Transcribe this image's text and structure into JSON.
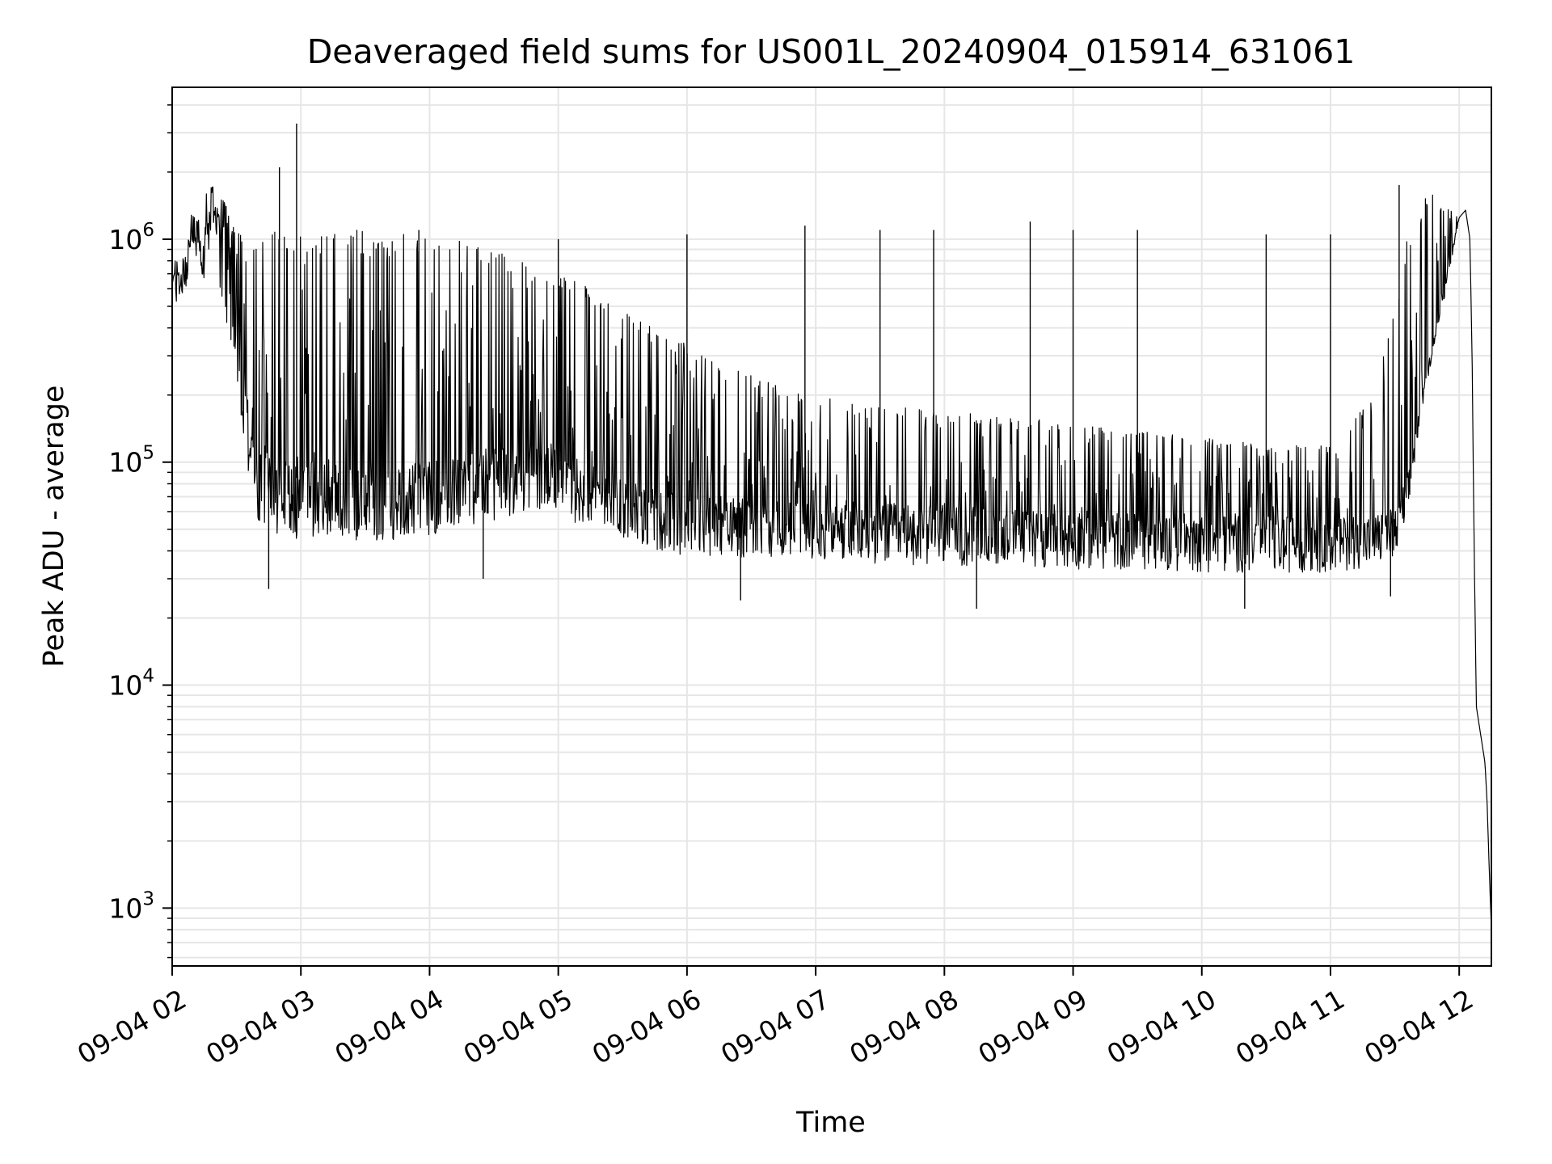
{
  "chart_data": {
    "type": "line",
    "title": "Deaveraged field sums for US001L_20240904_015914_631061",
    "xlabel": "Time",
    "ylabel": "Peak ADU - average",
    "x_axis": {
      "type": "datetime",
      "range": [
        "2024-09-04T02:00",
        "2024-09-04T12:15"
      ],
      "tick_labels": [
        "09-04 02",
        "09-04 03",
        "09-04 04",
        "09-04 05",
        "09-04 06",
        "09-04 07",
        "09-04 08",
        "09-04 09",
        "09-04 10",
        "09-04 11",
        "09-04 12"
      ]
    },
    "y_axis": {
      "scale": "log",
      "range": [
        550,
        4800000
      ],
      "tick_values": [
        1000,
        10000,
        100000,
        1000000
      ],
      "tick_labels": [
        {
          "base": "10",
          "exp": "3"
        },
        {
          "base": "10",
          "exp": "4"
        },
        {
          "base": "10",
          "exp": "5"
        },
        {
          "base": "10",
          "exp": "6"
        }
      ]
    },
    "grid": true,
    "line_color": "#000000",
    "grid_color": "#e6e6e6",
    "series": [
      {
        "x": [
          "2024-09-04T02:00",
          "2024-09-04T02:03",
          "2024-09-04T02:06",
          "2024-09-04T02:09",
          "2024-09-04T02:12",
          "2024-09-04T02:15",
          "2024-09-04T02:18",
          "2024-09-04T02:21",
          "2024-09-04T02:24",
          "2024-09-04T02:27",
          "2024-09-04T02:30",
          "2024-09-04T02:33",
          "2024-09-04T02:36",
          "2024-09-04T02:39",
          "2024-09-04T02:42",
          "2024-09-04T02:45",
          "2024-09-04T02:48",
          "2024-09-04T02:51",
          "2024-09-04T02:54",
          "2024-09-04T02:57",
          "2024-09-04T03:00",
          "2024-09-04T03:10",
          "2024-09-04T03:20",
          "2024-09-04T03:30",
          "2024-09-04T03:40",
          "2024-09-04T03:50",
          "2024-09-04T04:00",
          "2024-09-04T04:15",
          "2024-09-04T04:30",
          "2024-09-04T04:45",
          "2024-09-04T05:00",
          "2024-09-04T05:15",
          "2024-09-04T05:30",
          "2024-09-04T05:45",
          "2024-09-04T06:00",
          "2024-09-04T06:30",
          "2024-09-04T07:00",
          "2024-09-04T07:30",
          "2024-09-04T08:00",
          "2024-09-04T08:30",
          "2024-09-04T09:00",
          "2024-09-04T09:30",
          "2024-09-04T10:00",
          "2024-09-04T10:30",
          "2024-09-04T11:00",
          "2024-09-04T11:20",
          "2024-09-04T11:30",
          "2024-09-04T11:36",
          "2024-09-04T11:42",
          "2024-09-04T11:48",
          "2024-09-04T11:54",
          "2024-09-04T12:00",
          "2024-09-04T12:03",
          "2024-09-04T12:05",
          "2024-09-04T12:06",
          "2024-09-04T12:07",
          "2024-09-04T12:08",
          "2024-09-04T12:10",
          "2024-09-04T12:12",
          "2024-09-04T12:13",
          "2024-09-04T12:14",
          "2024-09-04T12:15"
        ],
        "base": [
          650000,
          650000,
          700000,
          1100000,
          900000,
          1000000,
          1300000,
          1200000,
          900000,
          600000,
          450000,
          250000,
          170000,
          120000,
          95000,
          90000,
          88000,
          87000,
          86000,
          85000,
          85000,
          83000,
          82000,
          80000,
          82000,
          84000,
          85000,
          90000,
          100000,
          110000,
          100000,
          85000,
          75000,
          65000,
          62000,
          60000,
          58000,
          57000,
          55000,
          54000,
          53000,
          52000,
          51000,
          50000,
          50000,
          52000,
          55000,
          80000,
          180000,
          350000,
          650000,
          1250000,
          1350000,
          1000000,
          300000,
          40000,
          8000,
          6000,
          4500,
          3000,
          1500,
          800
        ],
        "low": [
          500000,
          500000,
          550000,
          900000,
          700000,
          650000,
          900000,
          700000,
          500000,
          350000,
          250000,
          120000,
          70000,
          55000,
          50000,
          48000,
          47000,
          46000,
          46000,
          45000,
          45000,
          44000,
          44000,
          43000,
          44000,
          46000,
          47000,
          50000,
          55000,
          60000,
          58000,
          50000,
          45000,
          40000,
          38000,
          37000,
          36000,
          35000,
          34000,
          34000,
          33000,
          33000,
          32000,
          32000,
          32000,
          34000,
          36000,
          55000,
          160000,
          320000,
          600000,
          1250000,
          1350000,
          1000000,
          300000,
          40000,
          8000,
          6000,
          4500,
          3000,
          1500,
          800
        ],
        "high": [
          800000,
          800000,
          850000,
          1300000,
          1200000,
          1600000,
          1800000,
          1600000,
          1500000,
          1300000,
          1100000,
          1100000,
          1100000,
          1100000,
          1100000,
          1100000,
          1100000,
          1100000,
          1100000,
          1100000,
          1100000,
          1100000,
          1100000,
          1100000,
          1100000,
          1100000,
          1050000,
          1000000,
          900000,
          800000,
          700000,
          600000,
          500000,
          400000,
          350000,
          250000,
          200000,
          180000,
          170000,
          160000,
          150000,
          140000,
          130000,
          120000,
          120000,
          200000,
          500000,
          1100000,
          1500000,
          1600000,
          1400000,
          1250000,
          1350000,
          1000000,
          300000,
          40000,
          8000,
          6000,
          4500,
          3000,
          1500,
          800
        ],
        "spikes": [
          {
            "x": "2024-09-04T02:50",
            "y": 2100000
          },
          {
            "x": "2024-09-04T02:58",
            "y": 3300000
          },
          {
            "x": "2024-09-04T02:45",
            "y": 27000
          },
          {
            "x": "2024-09-04T03:55",
            "y": 1100000
          },
          {
            "x": "2024-09-04T04:25",
            "y": 30000
          },
          {
            "x": "2024-09-04T05:00",
            "y": 1000000
          },
          {
            "x": "2024-09-04T06:00",
            "y": 1050000
          },
          {
            "x": "2024-09-04T06:25",
            "y": 24000
          },
          {
            "x": "2024-09-04T06:55",
            "y": 1150000
          },
          {
            "x": "2024-09-04T07:30",
            "y": 1100000
          },
          {
            "x": "2024-09-04T07:55",
            "y": 1100000
          },
          {
            "x": "2024-09-04T08:15",
            "y": 22000
          },
          {
            "x": "2024-09-04T08:40",
            "y": 1200000
          },
          {
            "x": "2024-09-04T09:00",
            "y": 1100000
          },
          {
            "x": "2024-09-04T09:30",
            "y": 1100000
          },
          {
            "x": "2024-09-04T10:20",
            "y": 22000
          },
          {
            "x": "2024-09-04T10:30",
            "y": 1050000
          },
          {
            "x": "2024-09-04T11:00",
            "y": 1050000
          },
          {
            "x": "2024-09-04T11:28",
            "y": 25000
          },
          {
            "x": "2024-09-04T11:32",
            "y": 1750000
          }
        ]
      }
    ]
  }
}
